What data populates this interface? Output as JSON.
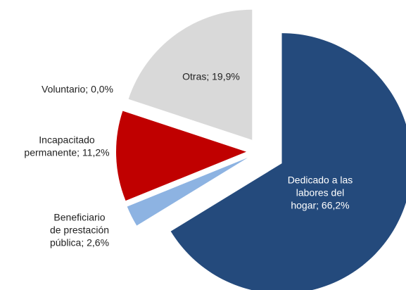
{
  "chart_data": {
    "type": "pie",
    "values": [
      66.2,
      2.6,
      11.2,
      0.0,
      19.9
    ],
    "value_labels": [
      [
        "Dedicado a las",
        "labores del",
        "hogar; 66,2%"
      ],
      [
        "Beneficiario",
        "de prestación",
        "pública; 2,6%"
      ],
      [
        "Incapacitado",
        "permanente; 11,2%"
      ],
      [
        "Voluntario; 0,0%"
      ],
      [
        "Otras; 19,9%"
      ]
    ],
    "colors": [
      "#244a7c",
      "#8db3e2",
      "#c00000",
      "#d9d9d9",
      "#d9d9d9"
    ]
  }
}
